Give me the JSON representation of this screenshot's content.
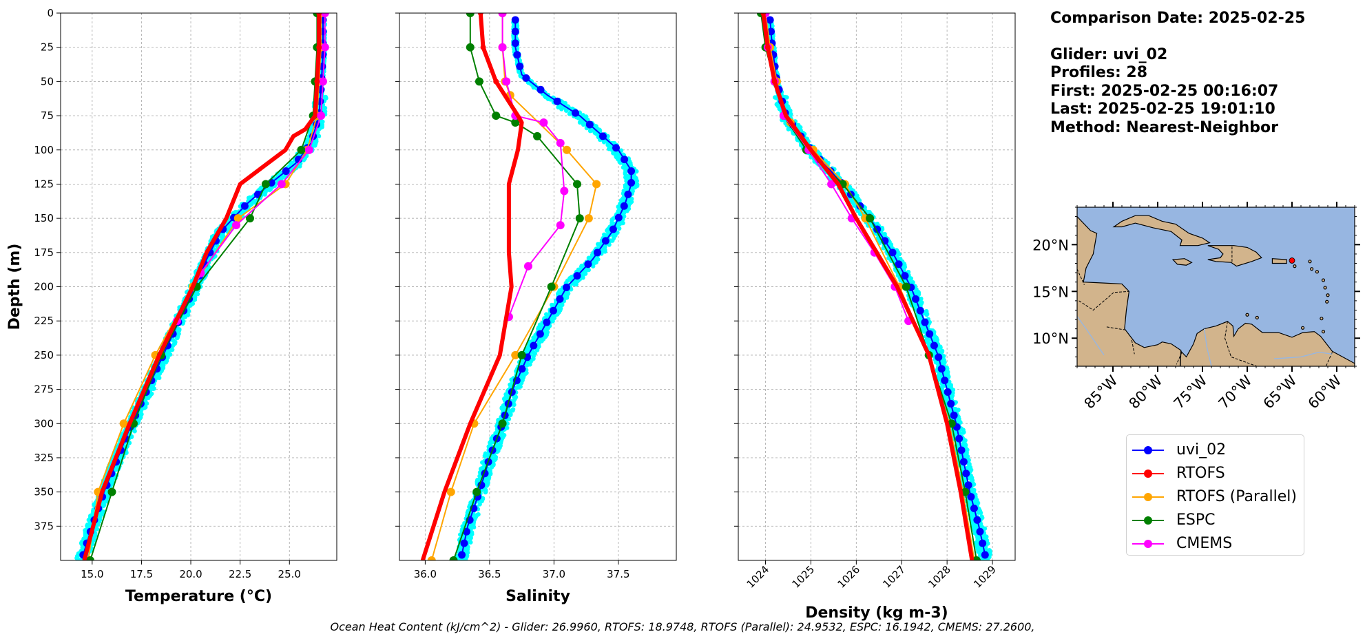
{
  "chart_data": [
    {
      "type": "line",
      "xlabel": "Temperature (°C)",
      "ylabel": "Depth (m)",
      "xlim": [
        13.4,
        27.4
      ],
      "ylim": [
        400,
        0
      ],
      "xticks": [
        "15.0",
        "17.5",
        "20.0",
        "22.5",
        "25.0"
      ],
      "yticks": [
        "0",
        "25",
        "50",
        "75",
        "100",
        "125",
        "150",
        "175",
        "200",
        "225",
        "250",
        "275",
        "300",
        "325",
        "350",
        "375"
      ],
      "grid": true,
      "series": [
        {
          "name": "uvi_02",
          "color": "#0000ff",
          "depth": [
            5,
            30,
            55,
            75,
            95,
            110,
            125,
            140,
            160,
            180,
            200,
            225,
            250,
            275,
            300,
            325,
            350,
            375,
            398
          ],
          "values": [
            26.7,
            26.7,
            26.6,
            26.5,
            26.1,
            25.3,
            24.0,
            22.8,
            21.5,
            20.8,
            20.2,
            19.4,
            18.6,
            17.8,
            17.0,
            16.3,
            15.6,
            15.0,
            14.5
          ]
        },
        {
          "name": "RTOFS",
          "color": "#ff0000",
          "depth": [
            0,
            25,
            50,
            75,
            85,
            90,
            100,
            125,
            150,
            175,
            200,
            250,
            300,
            350,
            400
          ],
          "values": [
            26.5,
            26.5,
            26.4,
            26.3,
            25.8,
            25.2,
            24.8,
            22.5,
            21.8,
            20.8,
            20.1,
            18.4,
            16.9,
            15.5,
            14.6
          ]
        },
        {
          "name": "RTOFS (Parallel)",
          "color": "#ffa500",
          "depth": [
            0,
            25,
            50,
            75,
            100,
            125,
            150,
            200,
            250,
            300,
            350,
            400
          ],
          "values": [
            26.6,
            26.6,
            26.5,
            26.4,
            25.9,
            24.8,
            22.4,
            20.1,
            18.2,
            16.6,
            15.3,
            14.8
          ]
        },
        {
          "name": "ESPC",
          "color": "#008000",
          "depth": [
            0,
            25,
            50,
            75,
            100,
            125,
            150,
            200,
            250,
            300,
            350,
            400
          ],
          "values": [
            26.4,
            26.4,
            26.3,
            26.2,
            25.6,
            23.8,
            23.0,
            20.3,
            18.5,
            17.1,
            16.0,
            14.9
          ]
        },
        {
          "name": "CMEMS",
          "color": "#ff00ff",
          "depth": [
            0,
            25,
            50,
            75,
            100,
            125,
            155,
            190,
            225
          ],
          "values": [
            26.8,
            26.8,
            26.7,
            26.6,
            26.0,
            24.6,
            22.3,
            20.5,
            19.3
          ]
        }
      ]
    },
    {
      "type": "line",
      "xlabel": "Salinity",
      "xlim": [
        35.8,
        37.95
      ],
      "ylim": [
        400,
        0
      ],
      "xticks": [
        "36.0",
        "36.5",
        "37.0",
        "37.5"
      ],
      "grid": true,
      "series": [
        {
          "name": "uvi_02",
          "color": "#0000ff",
          "depth": [
            5,
            25,
            45,
            60,
            75,
            90,
            100,
            115,
            125,
            140,
            160,
            180,
            200,
            225,
            250,
            275,
            300,
            325,
            350,
            375,
            398
          ],
          "values": [
            36.7,
            36.7,
            36.75,
            36.95,
            37.2,
            37.38,
            37.5,
            37.6,
            37.6,
            37.55,
            37.45,
            37.3,
            37.1,
            36.95,
            36.8,
            36.68,
            36.6,
            36.5,
            36.42,
            36.33,
            36.28
          ]
        },
        {
          "name": "RTOFS",
          "color": "#ff0000",
          "depth": [
            0,
            25,
            50,
            75,
            80,
            100,
            125,
            150,
            175,
            200,
            250,
            300,
            350,
            400
          ],
          "values": [
            36.43,
            36.45,
            36.55,
            36.72,
            36.75,
            36.72,
            36.65,
            36.65,
            36.65,
            36.67,
            36.58,
            36.35,
            36.15,
            35.98
          ]
        },
        {
          "name": "RTOFS (Parallel)",
          "color": "#ffa500",
          "depth": [
            0,
            25,
            50,
            60,
            100,
            125,
            150,
            200,
            250,
            300,
            350,
            400
          ],
          "values": [
            36.6,
            36.6,
            36.62,
            36.66,
            37.1,
            37.33,
            37.27,
            37.0,
            36.7,
            36.38,
            36.2,
            36.05
          ]
        },
        {
          "name": "ESPC",
          "color": "#008000",
          "depth": [
            0,
            25,
            50,
            75,
            80,
            90,
            125,
            150,
            200,
            250,
            300,
            350,
            400
          ],
          "values": [
            36.35,
            36.35,
            36.42,
            36.55,
            36.7,
            36.87,
            37.18,
            37.2,
            36.98,
            36.75,
            36.6,
            36.4,
            36.22
          ]
        },
        {
          "name": "CMEMS",
          "color": "#ff00ff",
          "depth": [
            0,
            25,
            50,
            75,
            80,
            95,
            130,
            155,
            185,
            222
          ],
          "values": [
            36.6,
            36.6,
            36.63,
            36.7,
            36.92,
            37.05,
            37.08,
            37.05,
            36.8,
            36.65
          ]
        }
      ]
    },
    {
      "type": "line",
      "xlabel": "Density (kg m-3)",
      "xlim": [
        1023.4,
        1029.5
      ],
      "ylim": [
        400,
        0
      ],
      "xticks": [
        "1024",
        "1025",
        "1026",
        "1027",
        "1028",
        "1029"
      ],
      "grid": true,
      "series": [
        {
          "name": "uvi_02",
          "color": "#0000ff",
          "depth": [
            5,
            25,
            50,
            75,
            100,
            125,
            150,
            175,
            200,
            225,
            250,
            275,
            300,
            325,
            350,
            375,
            398
          ],
          "values": [
            1024.1,
            1024.15,
            1024.25,
            1024.45,
            1025.0,
            1025.7,
            1026.3,
            1026.8,
            1027.2,
            1027.5,
            1027.8,
            1028.0,
            1028.2,
            1028.35,
            1028.5,
            1028.7,
            1028.85
          ]
        },
        {
          "name": "RTOFS",
          "color": "#ff0000",
          "depth": [
            0,
            25,
            50,
            75,
            100,
            125,
            150,
            200,
            250,
            300,
            350,
            400
          ],
          "values": [
            1023.95,
            1024.05,
            1024.2,
            1024.45,
            1025.0,
            1025.6,
            1026.0,
            1026.9,
            1027.6,
            1028.0,
            1028.3,
            1028.55
          ]
        },
        {
          "name": "RTOFS (Parallel)",
          "color": "#ffa500",
          "depth": [
            0,
            25,
            50,
            75,
            80,
            100,
            125,
            150,
            200,
            250,
            300,
            350,
            400
          ],
          "values": [
            1024.0,
            1024.1,
            1024.25,
            1024.4,
            1024.55,
            1025.05,
            1025.75,
            1026.2,
            1026.95,
            1027.6,
            1028.05,
            1028.35,
            1028.6
          ]
        },
        {
          "name": "ESPC",
          "color": "#008000",
          "depth": [
            0,
            25,
            50,
            75,
            100,
            125,
            150,
            200,
            250,
            300,
            350,
            400
          ],
          "values": [
            1023.9,
            1024.0,
            1024.2,
            1024.4,
            1024.9,
            1025.7,
            1026.3,
            1027.1,
            1027.6,
            1028.1,
            1028.4,
            1028.65
          ]
        },
        {
          "name": "CMEMS",
          "color": "#ff00ff",
          "depth": [
            0,
            25,
            50,
            75,
            100,
            125,
            150,
            175,
            200,
            225
          ],
          "values": [
            1024.0,
            1024.05,
            1024.2,
            1024.4,
            1024.95,
            1025.45,
            1025.9,
            1026.4,
            1026.85,
            1027.15
          ]
        }
      ]
    }
  ],
  "info": {
    "comparison_date": "Comparison Date: 2025-02-25",
    "glider": "Glider: uvi_02",
    "profiles": "Profiles: 28",
    "first": "First: 2025-02-25 00:16:07",
    "last": "Last: 2025-02-25 19:01:10",
    "method": "Method: Nearest-Neighbor"
  },
  "map": {
    "lon_range": [
      -89,
      -58
    ],
    "lat_range": [
      7,
      24
    ],
    "xticks": [
      "85°W",
      "80°W",
      "75°W",
      "70°W",
      "65°W",
      "60°W"
    ],
    "yticks": [
      "20°N",
      "15°N",
      "10°N"
    ],
    "ocean_color": "#97b6e1",
    "land_color": "#d2b48c",
    "glider_position": {
      "lon": -65,
      "lat": 18.3
    }
  },
  "legend": [
    {
      "label": "uvi_02",
      "color": "#0000ff"
    },
    {
      "label": "RTOFS",
      "color": "#ff0000"
    },
    {
      "label": "RTOFS (Parallel)",
      "color": "#ffa500"
    },
    {
      "label": "ESPC",
      "color": "#008000"
    },
    {
      "label": "CMEMS",
      "color": "#ff00ff"
    }
  ],
  "footer": "Ocean Heat Content (kJ/cm^2) - Glider: 26.9960,  RTOFS: 18.9748,  RTOFS (Parallel): 24.9532,  ESPC: 16.1942,  CMEMS: 27.2600,"
}
